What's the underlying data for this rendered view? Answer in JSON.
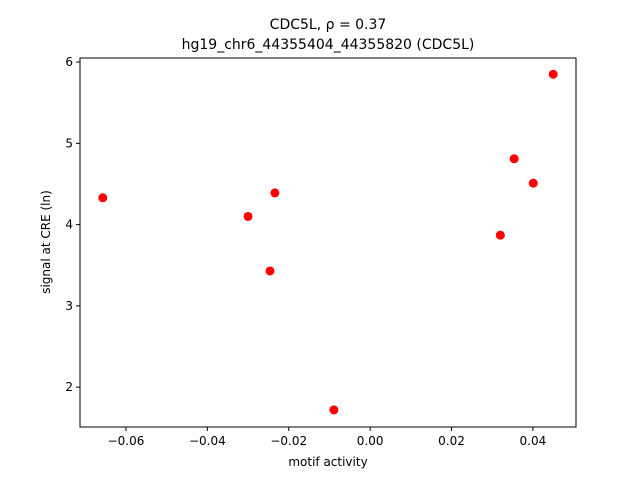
{
  "chart_data": {
    "type": "scatter",
    "title": [
      "CDC5L, ρ = 0.37",
      "hg19_chr6_44355404_44355820 (CDC5L)"
    ],
    "x_label": "motif activity",
    "y_label": "signal at CRE (ln)",
    "color": "#ff0000",
    "x": [
      -0.0657,
      -0.03,
      -0.0234,
      -0.0246,
      -0.0089,
      0.032,
      0.0354,
      0.0401,
      0.045
    ],
    "values": [
      4.33,
      4.1,
      4.39,
      3.43,
      1.72,
      3.87,
      4.81,
      4.51,
      5.85
    ],
    "xlim": [
      -0.0713,
      0.0506
    ],
    "ylim": [
      1.51,
      6.05
    ],
    "xticks": [
      {
        "value": -0.06,
        "label": "−0.06"
      },
      {
        "value": -0.04,
        "label": "−0.04"
      },
      {
        "value": -0.02,
        "label": "−0.02"
      },
      {
        "value": 0,
        "label": "0.00"
      },
      0.02,
      0.04
    ],
    "yticks": [
      2,
      3,
      4,
      5,
      6
    ]
  }
}
